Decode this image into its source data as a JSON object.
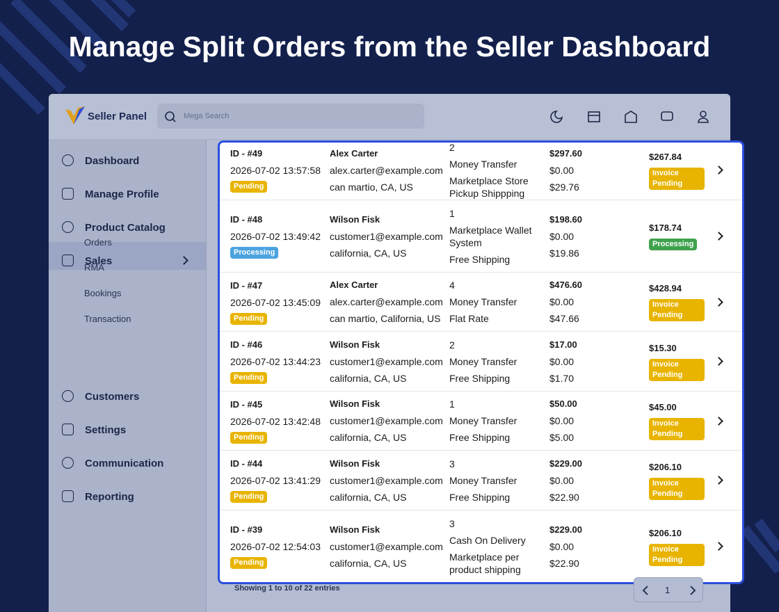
{
  "header": {
    "title": "Manage Split Orders from the Seller Dashboard"
  },
  "app": {
    "brand": "Seller Panel",
    "search_placeholder": "Mega Search"
  },
  "sidebar": {
    "items": [
      "Dashboard",
      "Manage Profile",
      "Product Catalog",
      "Sales",
      "Customers",
      "Settings",
      "Communication",
      "Reporting"
    ],
    "sub_items": [
      "Orders",
      "RMA",
      "Bookings",
      "Transaction"
    ]
  },
  "orders": [
    {
      "id": "ID - #49",
      "date": "2026-07-02 13:57:58",
      "status": "Pending",
      "customer": "Alex Carter",
      "email": "alex.carter@example.com",
      "address": "can martio, CA, US",
      "qty": "2",
      "payment": "Money Transfer",
      "shipping": "Marketplace Store Pickup Shippping",
      "total": "$297.60",
      "discount": "$0.00",
      "shipping_cost": "$29.76",
      "net": "$267.84",
      "net_status": "Invoice Pending"
    },
    {
      "id": "ID - #48",
      "date": "2026-07-02 13:49:42",
      "status": "Processing",
      "customer": "Wilson Fisk",
      "email": "customer1@example.com",
      "address": "california, CA, US",
      "qty": "1",
      "payment": "Marketplace Wallet System",
      "shipping": "Free Shipping",
      "total": "$198.60",
      "discount": "$0.00",
      "shipping_cost": "$19.86",
      "net": "$178.74",
      "net_status": "Processing"
    },
    {
      "id": "ID - #47",
      "date": "2026-07-02 13:45:09",
      "status": "Pending",
      "customer": "Alex Carter",
      "email": "alex.carter@example.com",
      "address": "can martio, California, US",
      "qty": "4",
      "payment": "Money Transfer",
      "shipping": "Flat Rate",
      "total": "$476.60",
      "discount": "$0.00",
      "shipping_cost": "$47.66",
      "net": "$428.94",
      "net_status": "Invoice Pending"
    },
    {
      "id": "ID - #46",
      "date": "2026-07-02 13:44:23",
      "status": "Pending",
      "customer": "Wilson Fisk",
      "email": "customer1@example.com",
      "address": "california, CA, US",
      "qty": "2",
      "payment": "Money Transfer",
      "shipping": "Free Shipping",
      "total": "$17.00",
      "discount": "$0.00",
      "shipping_cost": "$1.70",
      "net": "$15.30",
      "net_status": "Invoice Pending"
    },
    {
      "id": "ID - #45",
      "date": "2026-07-02 13:42:48",
      "status": "Pending",
      "customer": "Wilson Fisk",
      "email": "customer1@example.com",
      "address": "california, CA, US",
      "qty": "1",
      "payment": "Money Transfer",
      "shipping": "Free Shipping",
      "total": "$50.00",
      "discount": "$0.00",
      "shipping_cost": "$5.00",
      "net": "$45.00",
      "net_status": "Invoice Pending"
    },
    {
      "id": "ID - #44",
      "date": "2026-07-02 13:41:29",
      "status": "Pending",
      "customer": "Wilson Fisk",
      "email": "customer1@example.com",
      "address": "california, CA, US",
      "qty": "3",
      "payment": "Money Transfer",
      "shipping": "Free Shipping",
      "total": "$229.00",
      "discount": "$0.00",
      "shipping_cost": "$22.90",
      "net": "$206.10",
      "net_status": "Invoice Pending"
    },
    {
      "id": "ID - #39",
      "date": "2026-07-02 12:54:03",
      "status": "Pending",
      "customer": "Wilson Fisk",
      "email": "customer1@example.com",
      "address": "california, CA, US",
      "qty": "3",
      "payment": "Cash On Delivery",
      "shipping": "Marketplace per product shipping",
      "total": "$229.00",
      "discount": "$0.00",
      "shipping_cost": "$22.90",
      "net": "$206.10",
      "net_status": "Invoice Pending"
    }
  ],
  "footer": {
    "showing": "Showing 1 to 10 of 22 entries",
    "page": "1"
  }
}
